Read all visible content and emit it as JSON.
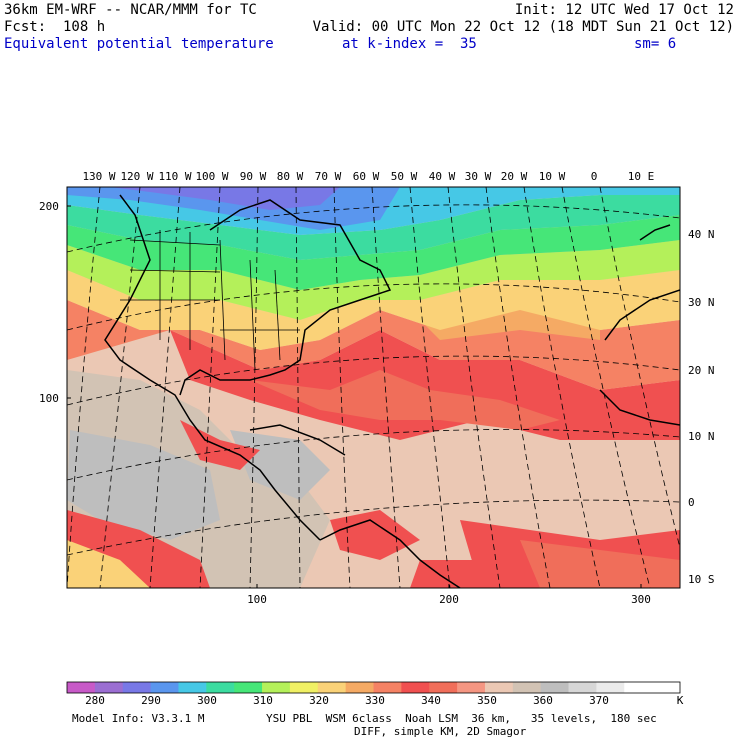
{
  "header": {
    "model": "36km EM-WRF -- NCAR/MMM for TC",
    "init": "Init: 12 UTC Wed 17 Oct 12",
    "fcst": "Fcst:  108 h",
    "valid": "Valid: 00 UTC Mon 22 Oct 12 (18 MDT Sun 21 Oct 12)",
    "field": "Equivalent potential temperature",
    "level": "at k-index =  35",
    "smooth": "sm= 6"
  },
  "map": {
    "top_lon_labels": [
      "130 W",
      "120 W",
      "110 W",
      "100 W",
      "90 W",
      "80 W",
      "70 W",
      "60 W",
      "50 W",
      "40 W",
      "30 W",
      "20 W",
      "10 W",
      "0",
      "10 E"
    ],
    "right_lat_labels": [
      "40 N",
      "30 N",
      "20 N",
      "10 N",
      "0",
      "10 S"
    ],
    "left_grid_labels": [
      "200",
      "100"
    ],
    "bottom_grid_labels": [
      "100",
      "200",
      "300"
    ]
  },
  "colorbar": {
    "colors": [
      "#c85ac8",
      "#9b6ed2",
      "#7878e6",
      "#5a96ee",
      "#46c8e6",
      "#3cdca0",
      "#46e678",
      "#b4f05a",
      "#f0f064",
      "#fad278",
      "#f5aa64",
      "#f58264",
      "#f05050",
      "#f06e5a",
      "#f59682",
      "#ebc8b4",
      "#d2c3b4",
      "#bebebe",
      "#d7d7d7",
      "#ebebeb",
      "#ffffff",
      "#ffffff"
    ],
    "tick_labels": [
      "280",
      "290",
      "300",
      "310",
      "320",
      "330",
      "340",
      "350",
      "360",
      "370"
    ],
    "unit": "K"
  },
  "footer": {
    "line1_left": "Model Info: V3.3.1 M",
    "line1_right": "YSU PBL  WSM 6class  Noah LSM  36 km,   35 levels,  180 sec",
    "line2": "DIFF, simple KM, 2D Smagor"
  }
}
